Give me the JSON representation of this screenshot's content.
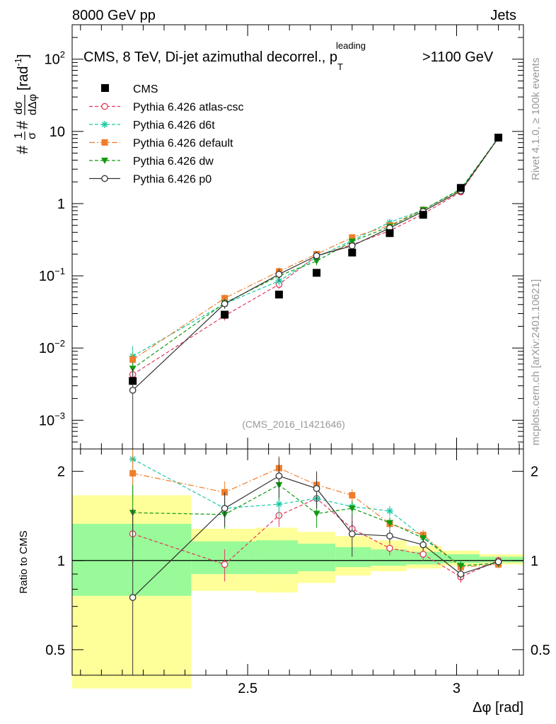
{
  "header": {
    "left": "8000 GeV pp",
    "right": "Jets"
  },
  "side_labels": {
    "rivet": "Rivet 4.1.0, ≥ 100k events",
    "mcplots": "mcplots.cern.ch [arXiv:2401.10621]"
  },
  "colors": {
    "cms": "#000000",
    "atlas": "#e2385a",
    "d6t": "#17c9a4",
    "default": "#f07d2a",
    "dw": "#109a10",
    "p0": "#333333",
    "band_inner": "#98fa98",
    "band_outer": "#ffff9a"
  },
  "chart_data": [
    {
      "type": "line",
      "title": "CMS, 8 TeV, Di-jet azimuthal decorrel., p",
      "title_sub": "T",
      "title_sup": "leading",
      "title_end": ">1100 GeV",
      "ylabel_prefix": "#",
      "ylabel_frac1": {
        "num": "1",
        "den": "σ"
      },
      "ylabel_mid": "#",
      "ylabel_frac2": {
        "num": "dσ",
        "den": "dΔφ"
      },
      "ylabel_unit": "[rad",
      "ylabel_unit_sup": "-1",
      "ylabel_unit_end": "]",
      "yscale": "log",
      "ylim": [
        0.0004,
        300
      ],
      "xlim": [
        2.08,
        3.16
      ],
      "yticks": [
        {
          "value": 0.001,
          "base": "10",
          "exp": "−3"
        },
        {
          "value": 0.01,
          "base": "10",
          "exp": "−2"
        },
        {
          "value": 0.1,
          "base": "10",
          "exp": "−1"
        },
        {
          "value": 1,
          "label": "1"
        },
        {
          "value": 10,
          "label": "10"
        },
        {
          "value": 100,
          "base": "10",
          "exp": "2"
        }
      ],
      "x": [
        2.225,
        2.445,
        2.575,
        2.665,
        2.75,
        2.84,
        2.92,
        3.01,
        3.1
      ],
      "cms": [
        0.0035,
        0.029,
        0.055,
        0.11,
        0.21,
        0.39,
        0.7,
        1.65,
        8.2
      ],
      "series": [
        {
          "key": "atlas",
          "name": "Pythia 6.426 atlas-csc",
          "values": [
            0.0043,
            0.028,
            0.076,
            0.19,
            0.27,
            0.42,
            0.72,
            1.45,
            8.2
          ],
          "errors": [
            0.0008,
            0.004,
            0.01,
            0.02,
            0.02,
            0.03,
            0.04,
            0.05,
            0.1
          ]
        },
        {
          "key": "d6t",
          "name": "Pythia 6.426 d6t",
          "values": [
            0.0077,
            0.041,
            0.085,
            0.18,
            0.31,
            0.55,
            0.82,
            1.6,
            8.1
          ],
          "errors": [
            0.003,
            0.006,
            0.012,
            0.02,
            0.02,
            0.03,
            0.04,
            0.05,
            0.1
          ]
        },
        {
          "key": "default",
          "name": "Pythia 6.426 default",
          "values": [
            0.0069,
            0.049,
            0.115,
            0.2,
            0.34,
            0.5,
            0.82,
            1.55,
            8.1
          ],
          "errors": [
            0.0015,
            0.006,
            0.015,
            0.02,
            0.02,
            0.03,
            0.04,
            0.05,
            0.1
          ]
        },
        {
          "key": "dw",
          "name": "Pythia 6.426 dw",
          "values": [
            0.0052,
            0.042,
            0.1,
            0.16,
            0.3,
            0.48,
            0.82,
            1.58,
            8.2
          ],
          "errors": [
            0.0012,
            0.006,
            0.015,
            0.02,
            0.02,
            0.03,
            0.04,
            0.05,
            0.1
          ]
        },
        {
          "key": "p0",
          "name": "Pythia 6.426 p0",
          "values": [
            0.0026,
            0.041,
            0.105,
            0.19,
            0.26,
            0.46,
            0.78,
            1.5,
            8.1
          ],
          "errors": [
            0.0026,
            0.006,
            0.02,
            0.025,
            0.025,
            0.03,
            0.04,
            0.05,
            0.1
          ]
        }
      ],
      "legend_cms": "CMS",
      "annotation": "(CMS_2016_I1421646)"
    },
    {
      "type": "line",
      "ylabel": "Ratio to CMS",
      "xlabel": "Δφ [rad]",
      "yscale": "log",
      "ylim": [
        0.41,
        2.38
      ],
      "xlim": [
        2.08,
        3.16
      ],
      "xticks": [
        {
          "value": 2.5,
          "label": "2.5"
        },
        {
          "value": 3.0,
          "label": "3"
        }
      ],
      "yticks": [
        {
          "value": 0.5,
          "label": "0.5"
        },
        {
          "value": 1,
          "label": "1"
        },
        {
          "value": 2,
          "label": "2"
        }
      ],
      "band_bins": [
        {
          "x0": 2.08,
          "x1": 2.365,
          "outer": [
            0.37,
            1.66
          ],
          "inner": [
            0.76,
            1.33
          ]
        },
        {
          "x0": 2.365,
          "x1": 2.52,
          "outer": [
            0.79,
            1.28
          ],
          "inner": [
            0.9,
            1.16
          ]
        },
        {
          "x0": 2.52,
          "x1": 2.62,
          "outer": [
            0.78,
            1.29
          ],
          "inner": [
            0.9,
            1.17
          ]
        },
        {
          "x0": 2.62,
          "x1": 2.71,
          "outer": [
            0.84,
            1.25
          ],
          "inner": [
            0.92,
            1.14
          ]
        },
        {
          "x0": 2.71,
          "x1": 2.795,
          "outer": [
            0.89,
            1.21
          ],
          "inner": [
            0.95,
            1.11
          ]
        },
        {
          "x0": 2.795,
          "x1": 2.88,
          "outer": [
            0.92,
            1.17
          ],
          "inner": [
            0.96,
            1.09
          ]
        },
        {
          "x0": 2.88,
          "x1": 2.965,
          "outer": [
            0.94,
            1.12
          ],
          "inner": [
            0.97,
            1.07
          ]
        },
        {
          "x0": 2.965,
          "x1": 3.055,
          "outer": [
            0.96,
            1.08
          ],
          "inner": [
            0.98,
            1.05
          ]
        },
        {
          "x0": 3.055,
          "x1": 3.16,
          "outer": [
            0.97,
            1.05
          ],
          "inner": [
            0.985,
            1.03
          ]
        }
      ],
      "series": [
        {
          "key": "atlas",
          "values": [
            1.23,
            0.97,
            1.42,
            1.62,
            1.28,
            1.1,
            1.05,
            0.88,
            1.0
          ],
          "errors": [
            0.25,
            0.12,
            0.12,
            0.12,
            0.08,
            0.06,
            0.05,
            0.04,
            0.03
          ]
        },
        {
          "key": "d6t",
          "values": [
            2.2,
            1.5,
            1.55,
            1.62,
            1.52,
            1.47,
            1.2,
            0.96,
            0.98
          ],
          "errors": [
            0.55,
            0.15,
            0.15,
            0.12,
            0.08,
            0.06,
            0.05,
            0.04,
            0.03
          ]
        },
        {
          "key": "default",
          "values": [
            1.97,
            1.7,
            2.05,
            1.8,
            1.66,
            1.33,
            1.22,
            0.95,
            0.97
          ],
          "errors": [
            0.4,
            0.15,
            0.2,
            0.15,
            0.08,
            0.06,
            0.05,
            0.04,
            0.03
          ]
        },
        {
          "key": "dw",
          "values": [
            1.45,
            1.43,
            1.8,
            1.44,
            1.5,
            1.34,
            1.19,
            0.96,
            0.98
          ],
          "errors": [
            0.35,
            0.15,
            0.2,
            0.15,
            0.08,
            0.06,
            0.05,
            0.04,
            0.03
          ]
        },
        {
          "key": "p0",
          "values": [
            0.75,
            1.5,
            1.93,
            1.75,
            1.23,
            1.21,
            1.13,
            0.9,
            0.99
          ],
          "errors": [
            0.75,
            0.2,
            0.3,
            0.25,
            0.2,
            0.06,
            0.05,
            0.04,
            0.03
          ]
        }
      ]
    }
  ]
}
